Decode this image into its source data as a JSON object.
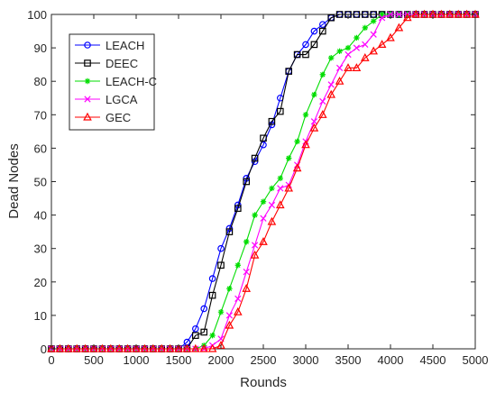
{
  "chart_data": {
    "type": "line",
    "xlabel": "Rounds",
    "ylabel": "Dead Nodes",
    "xlim": [
      0,
      5000
    ],
    "ylim": [
      0,
      100
    ],
    "xticks": [
      0,
      500,
      1000,
      1500,
      2000,
      2500,
      3000,
      3500,
      4000,
      4500,
      5000
    ],
    "yticks": [
      0,
      10,
      20,
      30,
      40,
      50,
      60,
      70,
      80,
      90,
      100
    ],
    "xtick_labels": [
      "0",
      "500",
      "1000",
      "1500",
      "2000",
      "2500",
      "3000",
      "3500",
      "4000",
      "4500",
      "5000"
    ],
    "ytick_labels": [
      "0",
      "10",
      "20",
      "30",
      "40",
      "50",
      "60",
      "70",
      "80",
      "90",
      "100"
    ],
    "grid": false,
    "legend_position": "top-left",
    "series": [
      {
        "name": "LEACH",
        "color": "#0000ff",
        "marker": "circle",
        "x": [
          0,
          100,
          200,
          300,
          400,
          500,
          600,
          700,
          800,
          900,
          1000,
          1100,
          1200,
          1300,
          1400,
          1500,
          1600,
          1700,
          1800,
          1900,
          2000,
          2100,
          2200,
          2300,
          2400,
          2500,
          2600,
          2700,
          2800,
          2900,
          3000,
          3100,
          3200,
          3300,
          3400,
          3500,
          3600,
          3700,
          3800,
          3900,
          4000,
          4100,
          4200,
          4300,
          4400,
          4500,
          4600,
          4700,
          4800,
          4900,
          5000
        ],
        "y": [
          0,
          0,
          0,
          0,
          0,
          0,
          0,
          0,
          0,
          0,
          0,
          0,
          0,
          0,
          0,
          0,
          2,
          6,
          12,
          21,
          30,
          36,
          43,
          51,
          56,
          61,
          67,
          75,
          83,
          88,
          91,
          95,
          97,
          99,
          100,
          100,
          100,
          100,
          100,
          100,
          100,
          100,
          100,
          100,
          100,
          100,
          100,
          100,
          100,
          100,
          100
        ]
      },
      {
        "name": "DEEC",
        "color": "#000000",
        "marker": "square",
        "x": [
          0,
          100,
          200,
          300,
          400,
          500,
          600,
          700,
          800,
          900,
          1000,
          1100,
          1200,
          1300,
          1400,
          1500,
          1600,
          1700,
          1800,
          1900,
          2000,
          2100,
          2200,
          2300,
          2400,
          2500,
          2600,
          2700,
          2800,
          2900,
          3000,
          3100,
          3200,
          3300,
          3400,
          3500,
          3600,
          3700,
          3800,
          3900,
          4000,
          4100,
          4200,
          4300,
          4400,
          4500,
          4600,
          4700,
          4800,
          4900,
          5000
        ],
        "y": [
          0,
          0,
          0,
          0,
          0,
          0,
          0,
          0,
          0,
          0,
          0,
          0,
          0,
          0,
          0,
          0,
          0,
          4,
          5,
          16,
          25,
          35,
          42,
          50,
          57,
          63,
          68,
          71,
          83,
          88,
          88,
          91,
          95,
          99,
          100,
          100,
          100,
          100,
          100,
          100,
          100,
          100,
          100,
          100,
          100,
          100,
          100,
          100,
          100,
          100,
          100
        ]
      },
      {
        "name": "LEACH-C",
        "color": "#00dd00",
        "marker": "asterisk",
        "x": [
          0,
          100,
          200,
          300,
          400,
          500,
          600,
          700,
          800,
          900,
          1000,
          1100,
          1200,
          1300,
          1400,
          1500,
          1600,
          1700,
          1800,
          1900,
          2000,
          2100,
          2200,
          2300,
          2400,
          2500,
          2600,
          2700,
          2800,
          2900,
          3000,
          3100,
          3200,
          3300,
          3400,
          3500,
          3600,
          3700,
          3800,
          3900,
          4000,
          4100,
          4200,
          4300,
          4400,
          4500,
          4600,
          4700,
          4800,
          4900,
          5000
        ],
        "y": [
          0,
          0,
          0,
          0,
          0,
          0,
          0,
          0,
          0,
          0,
          0,
          0,
          0,
          0,
          0,
          0,
          0,
          0,
          1,
          4,
          11,
          18,
          25,
          32,
          40,
          44,
          48,
          51,
          57,
          62,
          70,
          76,
          82,
          87,
          89,
          90,
          93,
          96,
          98,
          100,
          100,
          100,
          100,
          100,
          100,
          100,
          100,
          100,
          100,
          100,
          100
        ]
      },
      {
        "name": "LGCA",
        "color": "#ff00ff",
        "marker": "x",
        "x": [
          0,
          100,
          200,
          300,
          400,
          500,
          600,
          700,
          800,
          900,
          1000,
          1100,
          1200,
          1300,
          1400,
          1500,
          1600,
          1700,
          1800,
          1900,
          2000,
          2100,
          2200,
          2300,
          2400,
          2500,
          2600,
          2700,
          2800,
          2900,
          3000,
          3100,
          3200,
          3300,
          3400,
          3500,
          3600,
          3700,
          3800,
          3900,
          4000,
          4100,
          4200,
          4300,
          4400,
          4500,
          4600,
          4700,
          4800,
          4900,
          5000
        ],
        "y": [
          0,
          0,
          0,
          0,
          0,
          0,
          0,
          0,
          0,
          0,
          0,
          0,
          0,
          0,
          0,
          0,
          0,
          0,
          0,
          1,
          3,
          10,
          15,
          23,
          31,
          39,
          43,
          48,
          49,
          55,
          62,
          68,
          74,
          79,
          84,
          88,
          90,
          91,
          94,
          99,
          100,
          100,
          100,
          100,
          100,
          100,
          100,
          100,
          100,
          100,
          100
        ]
      },
      {
        "name": "GEC",
        "color": "#ff0000",
        "marker": "triangle",
        "x": [
          0,
          100,
          200,
          300,
          400,
          500,
          600,
          700,
          800,
          900,
          1000,
          1100,
          1200,
          1300,
          1400,
          1500,
          1600,
          1700,
          1800,
          1900,
          2000,
          2100,
          2200,
          2300,
          2400,
          2500,
          2600,
          2700,
          2800,
          2900,
          3000,
          3100,
          3200,
          3300,
          3400,
          3500,
          3600,
          3700,
          3800,
          3900,
          4000,
          4100,
          4200,
          4300,
          4400,
          4500,
          4600,
          4700,
          4800,
          4900,
          5000
        ],
        "y": [
          0,
          0,
          0,
          0,
          0,
          0,
          0,
          0,
          0,
          0,
          0,
          0,
          0,
          0,
          0,
          0,
          0,
          0,
          0,
          0,
          1,
          7,
          11,
          18,
          28,
          32,
          38,
          43,
          48,
          54,
          61,
          66,
          70,
          76,
          80,
          84,
          84,
          87,
          89,
          91,
          93,
          96,
          99,
          100,
          100,
          100,
          100,
          100,
          100,
          100,
          100
        ]
      }
    ]
  }
}
